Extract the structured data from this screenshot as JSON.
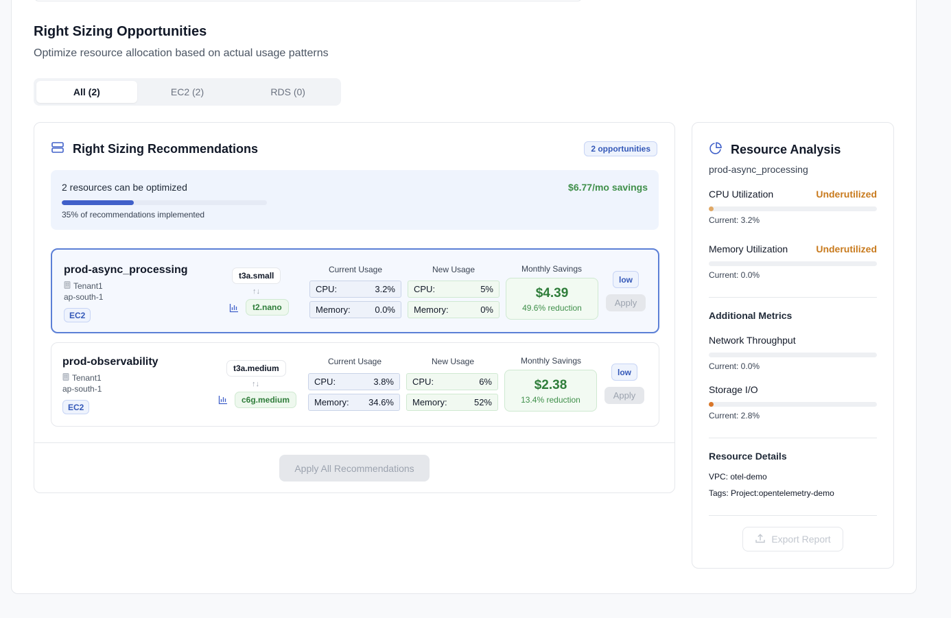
{
  "header": {
    "title": "Right Sizing Opportunities",
    "subtitle": "Optimize resource allocation based on actual usage patterns"
  },
  "tabs": [
    {
      "label": "All (2)",
      "active": true
    },
    {
      "label": "EC2 (2)",
      "active": false
    },
    {
      "label": "RDS (0)",
      "active": false
    }
  ],
  "recommendations": {
    "title": "Right Sizing Recommendations",
    "badge": "2 opportunities",
    "summary": {
      "text": "2 resources can be optimized",
      "savings": "$6.77/mo savings",
      "progress_fraction": 0.35,
      "note": "35% of recommendations implemented"
    },
    "column_headers": {
      "current": "Current Usage",
      "new": "New Usage",
      "savings": "Monthly Savings"
    },
    "cpu_label": "CPU:",
    "memory_label": "Memory:",
    "apply_label": "Apply",
    "apply_all_label": "Apply All Recommendations",
    "items": [
      {
        "name": "prod-async_processing",
        "tenant": "Tenant1",
        "region": "ap-south-1",
        "service": "EC2",
        "current_type": "t3a.small",
        "arrows": "↑↓",
        "new_type": "t2.nano",
        "current_cpu": "3.2%",
        "current_memory": "0.0%",
        "new_cpu": "5%",
        "new_memory": "0%",
        "savings": "$4.39",
        "reduction": "49.6% reduction",
        "priority": "low",
        "selected": true
      },
      {
        "name": "prod-observability",
        "tenant": "Tenant1",
        "region": "ap-south-1",
        "service": "EC2",
        "current_type": "t3a.medium",
        "arrows": "↑↓",
        "new_type": "c6g.medium",
        "current_cpu": "3.8%",
        "current_memory": "34.6%",
        "new_cpu": "6%",
        "new_memory": "52%",
        "savings": "$2.38",
        "reduction": "13.4% reduction",
        "priority": "low",
        "selected": false
      }
    ]
  },
  "analysis": {
    "title": "Resource Analysis",
    "resource": "prod-async_processing",
    "cpu": {
      "label": "CPU Utilization",
      "status": "Underutilized",
      "current": "Current: 3.2%",
      "value": 0.032
    },
    "memory": {
      "label": "Memory Utilization",
      "status": "Underutilized",
      "current": "Current: 0.0%",
      "value": 0.0
    },
    "additional_title": "Additional Metrics",
    "network": {
      "label": "Network Throughput",
      "current": "Current: 0.0%",
      "value": 0.0
    },
    "storage": {
      "label": "Storage I/O",
      "current": "Current: 2.8%",
      "value": 0.028
    },
    "details_title": "Resource Details",
    "vpc": "VPC: otel-demo",
    "tags": "Tags: Project:opentelemetry-demo",
    "export_label": "Export Report"
  },
  "colors": {
    "accent": "#4060c9",
    "success": "#2f7d3a",
    "warning": "#c87a1d",
    "cpu_dot": "#e0a866",
    "storage_dot": "#d9772a"
  },
  "icons": {
    "recommendations": "server-stack-icon",
    "analysis": "pie-chart-icon",
    "tenant": "building-icon",
    "chart": "bar-chart-icon",
    "export": "upload-icon"
  }
}
